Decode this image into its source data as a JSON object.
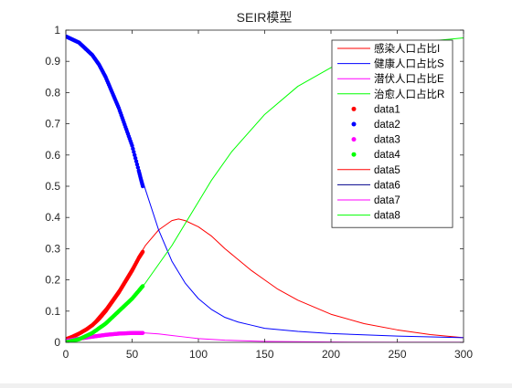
{
  "chart_data": {
    "type": "line",
    "title": "SEIR模型",
    "xlabel": "",
    "ylabel": "",
    "xlim": [
      0,
      300
    ],
    "ylim": [
      0,
      1
    ],
    "grid": false,
    "legend_placement": "top-right",
    "xticks": [
      0,
      50,
      100,
      150,
      200,
      250,
      300
    ],
    "yticks": [
      0,
      0.1,
      0.2,
      0.3,
      0.4,
      0.5,
      0.6,
      0.7,
      0.8,
      0.9,
      1
    ],
    "series": [
      {
        "name": "感染人口占比I",
        "style": "line",
        "color": "#ff0000",
        "x": [
          0,
          10,
          20,
          30,
          40,
          50,
          60,
          70,
          80,
          85,
          90,
          100,
          110,
          120,
          130,
          140,
          150,
          160,
          175,
          200,
          225,
          250,
          275,
          300
        ],
        "y": [
          0.01,
          0.03,
          0.06,
          0.11,
          0.17,
          0.24,
          0.31,
          0.36,
          0.39,
          0.395,
          0.39,
          0.37,
          0.34,
          0.3,
          0.265,
          0.23,
          0.2,
          0.17,
          0.135,
          0.09,
          0.06,
          0.04,
          0.025,
          0.015
        ]
      },
      {
        "name": "健康人口占比S",
        "style": "line",
        "color": "#0000ff",
        "x": [
          0,
          10,
          20,
          30,
          40,
          50,
          60,
          70,
          80,
          90,
          100,
          110,
          120,
          130,
          140,
          150,
          175,
          200,
          250,
          300
        ],
        "y": [
          0.98,
          0.96,
          0.92,
          0.85,
          0.75,
          0.63,
          0.49,
          0.36,
          0.26,
          0.19,
          0.14,
          0.105,
          0.08,
          0.065,
          0.055,
          0.045,
          0.035,
          0.028,
          0.02,
          0.015
        ]
      },
      {
        "name": "潜伏人口占比E",
        "style": "line",
        "color": "#ff00ff",
        "x": [
          0,
          10,
          20,
          30,
          40,
          50,
          60,
          70,
          80,
          90,
          100,
          120,
          150,
          200,
          250,
          300
        ],
        "y": [
          0.005,
          0.012,
          0.018,
          0.024,
          0.028,
          0.03,
          0.03,
          0.027,
          0.022,
          0.017,
          0.012,
          0.007,
          0.003,
          0.001,
          0.0005,
          0.0002
        ]
      },
      {
        "name": "治愈人口占比R",
        "style": "line",
        "color": "#00ff00",
        "x": [
          0,
          10,
          20,
          30,
          40,
          50,
          60,
          70,
          80,
          90,
          100,
          110,
          125,
          150,
          175,
          200,
          225,
          250,
          275,
          300
        ],
        "y": [
          0.0,
          0.01,
          0.03,
          0.06,
          0.1,
          0.14,
          0.19,
          0.25,
          0.31,
          0.38,
          0.45,
          0.52,
          0.61,
          0.73,
          0.82,
          0.88,
          0.92,
          0.95,
          0.965,
          0.975
        ]
      },
      {
        "name": "data1",
        "style": "marker",
        "color": "#ff0000",
        "x": [
          0,
          5,
          10,
          15,
          20,
          25,
          30,
          35,
          40,
          45,
          50,
          55,
          58
        ],
        "y": [
          0.01,
          0.018,
          0.028,
          0.04,
          0.055,
          0.075,
          0.1,
          0.13,
          0.16,
          0.195,
          0.23,
          0.27,
          0.29
        ]
      },
      {
        "name": "data2",
        "style": "marker",
        "color": "#0000ff",
        "x": [
          0,
          5,
          10,
          15,
          20,
          25,
          30,
          35,
          40,
          45,
          50,
          55,
          58
        ],
        "y": [
          0.98,
          0.97,
          0.96,
          0.94,
          0.92,
          0.89,
          0.85,
          0.8,
          0.75,
          0.69,
          0.63,
          0.55,
          0.5
        ]
      },
      {
        "name": "data3",
        "style": "marker",
        "color": "#ff00ff",
        "x": [
          0,
          5,
          10,
          15,
          20,
          25,
          30,
          35,
          40,
          45,
          50,
          55,
          58
        ],
        "y": [
          0.005,
          0.008,
          0.012,
          0.015,
          0.018,
          0.021,
          0.024,
          0.026,
          0.028,
          0.029,
          0.03,
          0.03,
          0.03
        ]
      },
      {
        "name": "data4",
        "style": "marker",
        "color": "#00ff00",
        "x": [
          0,
          5,
          10,
          15,
          20,
          25,
          30,
          35,
          40,
          45,
          50,
          55,
          58
        ],
        "y": [
          0.0,
          0.005,
          0.01,
          0.02,
          0.03,
          0.045,
          0.06,
          0.08,
          0.1,
          0.12,
          0.14,
          0.165,
          0.18
        ]
      },
      {
        "name": "data5",
        "style": "line",
        "color": "#ff0000",
        "x": [],
        "y": []
      },
      {
        "name": "data6",
        "style": "line",
        "color": "#00008b",
        "x": [],
        "y": []
      },
      {
        "name": "data7",
        "style": "line",
        "color": "#ff00ff",
        "x": [],
        "y": []
      },
      {
        "name": "data8",
        "style": "line",
        "color": "#00ff00",
        "x": [],
        "y": []
      }
    ]
  }
}
